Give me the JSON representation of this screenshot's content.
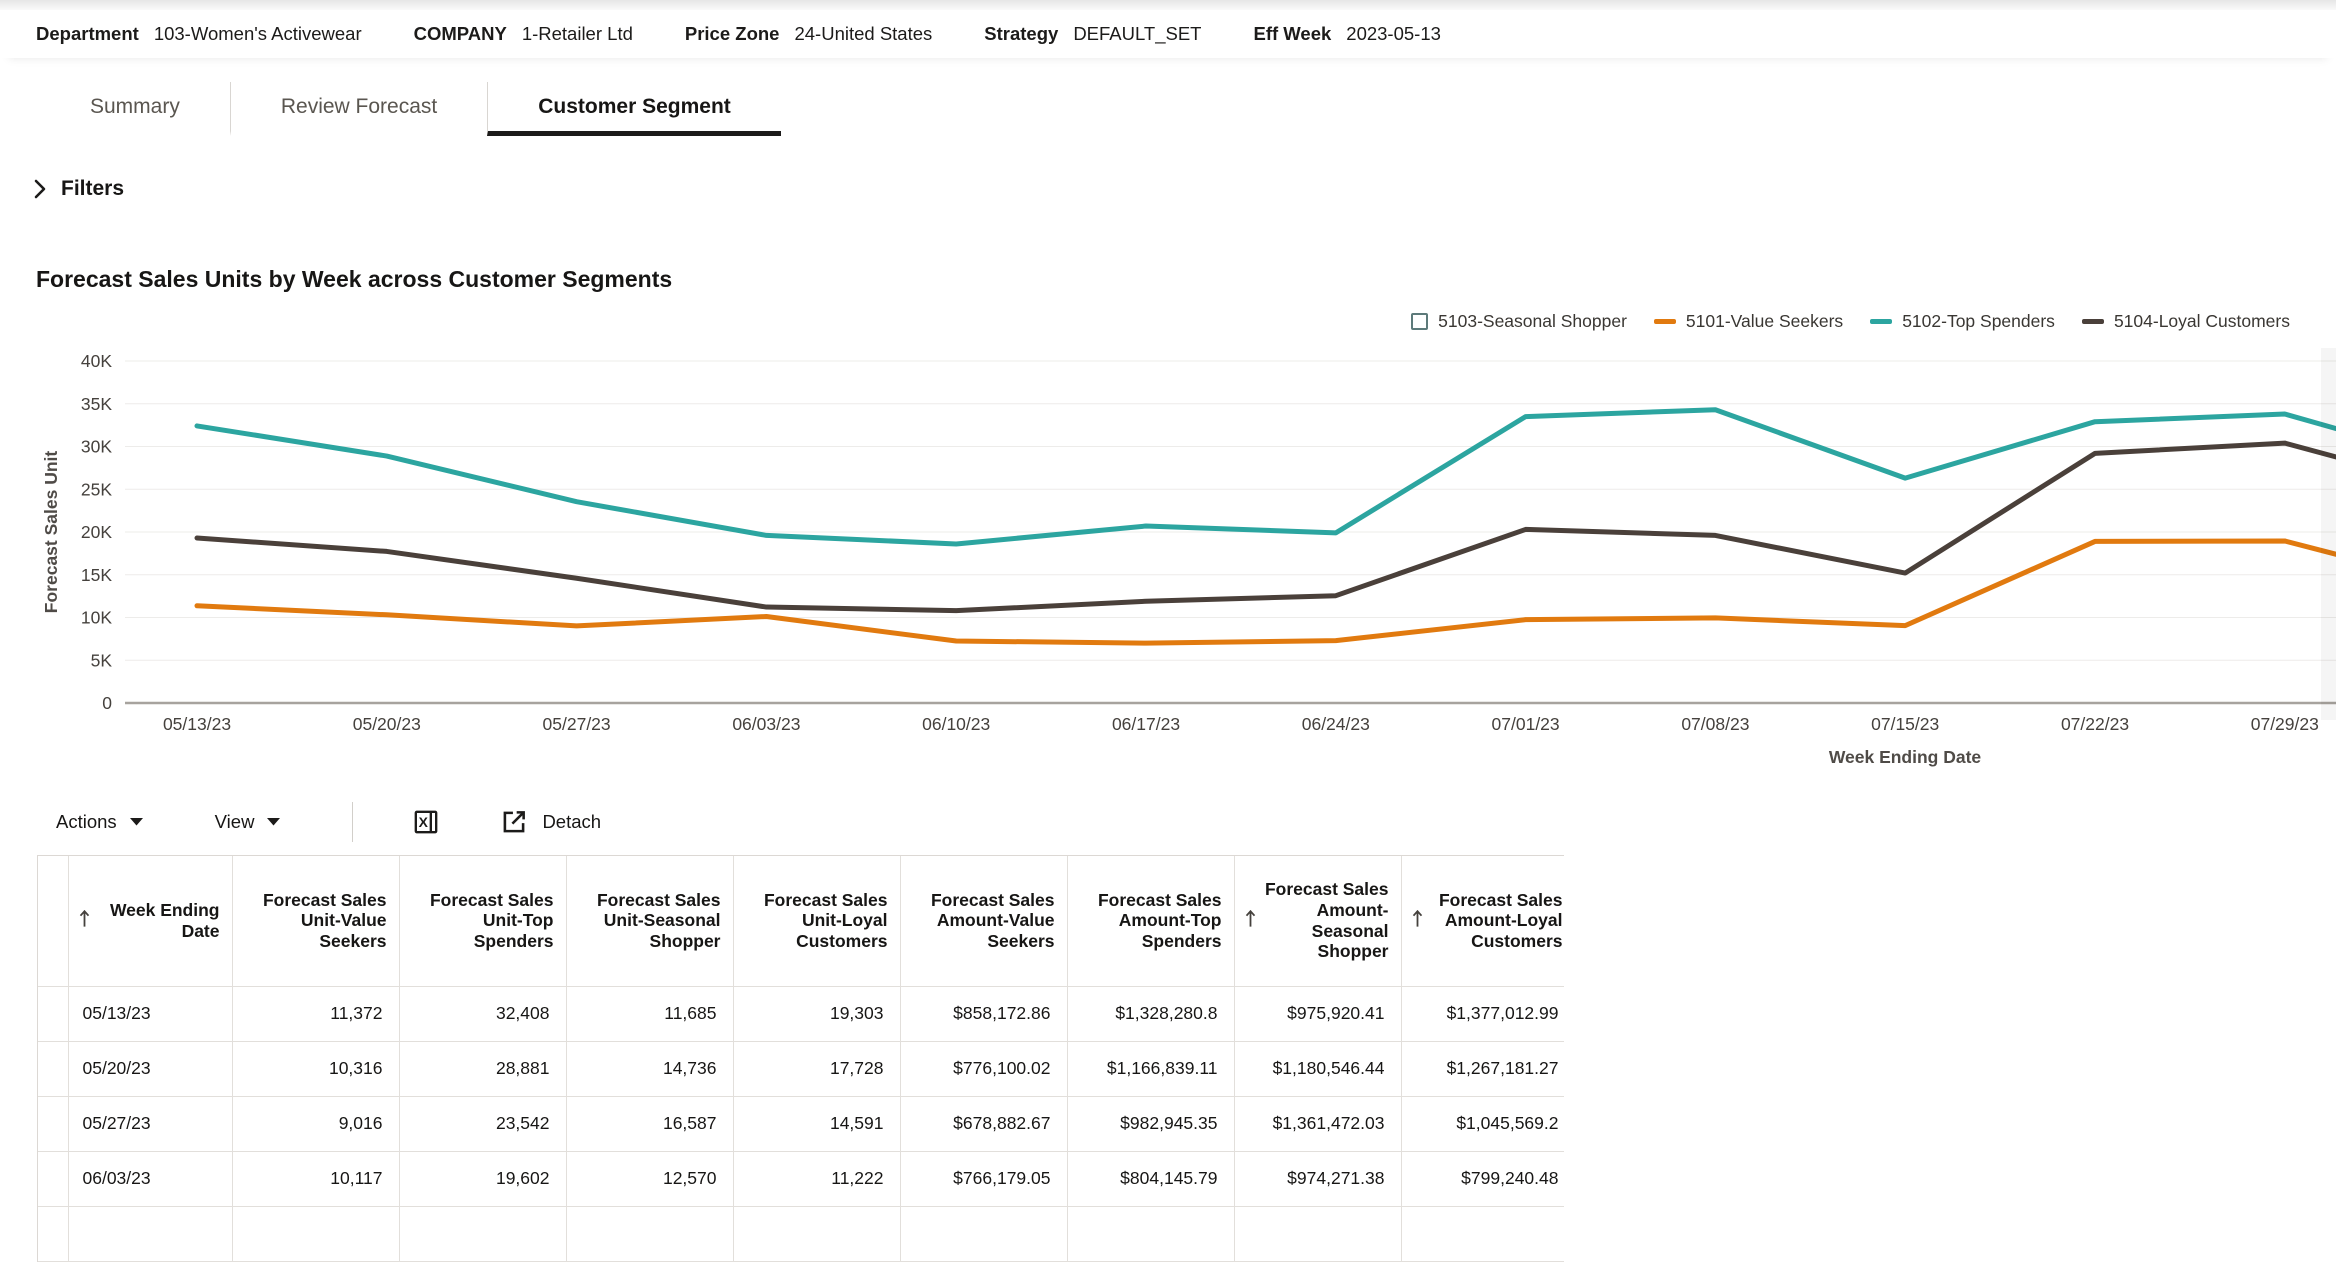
{
  "context_bar": {
    "fields": [
      {
        "label": "Department",
        "value": "103-Women's Activewear"
      },
      {
        "label": "COMPANY",
        "value": "1-Retailer Ltd"
      },
      {
        "label": "Price Zone",
        "value": "24-United States"
      },
      {
        "label": "Strategy",
        "value": "DEFAULT_SET"
      },
      {
        "label": "Eff Week",
        "value": "2023-05-13"
      }
    ]
  },
  "tabs": [
    {
      "label": "Summary",
      "active": false
    },
    {
      "label": "Review Forecast",
      "active": false
    },
    {
      "label": "Customer Segment",
      "active": true
    }
  ],
  "filters": {
    "label": "Filters",
    "expanded": false
  },
  "chart": {
    "title": "Forecast Sales Units by Week across Customer Segments"
  },
  "chart_data": {
    "type": "line",
    "title": "Forecast Sales Units by Week across Customer Segments",
    "xlabel": "Week Ending Date",
    "ylabel": "Forecast Sales Unit",
    "ylim": [
      0,
      40000
    ],
    "grid": true,
    "legend_position": "top-right",
    "y_tick_labels": [
      "40K",
      "35K",
      "30K",
      "25K",
      "20K",
      "15K",
      "10K",
      "5K",
      "0"
    ],
    "y_tick_values": [
      40000,
      35000,
      30000,
      25000,
      20000,
      15000,
      10000,
      5000,
      0
    ],
    "x": [
      "05/13/23",
      "05/20/23",
      "05/27/23",
      "06/03/23",
      "06/10/23",
      "06/17/23",
      "06/24/23",
      "07/01/23",
      "07/08/23",
      "07/15/23",
      "07/22/23",
      "07/29/23"
    ],
    "note": "Series extend one partially-visible point past 07/29/23 at the clipped right edge; 5103-Seasonal Shopper is toggled off (empty checkbox in legend). Values after 06/03/23 are estimated from the plot.",
    "series": [
      {
        "name": "5103-Seasonal Shopper",
        "color": "#5d7a7a",
        "visible": false,
        "swatch": "checkbox",
        "values": []
      },
      {
        "name": "5101-Value Seekers",
        "color": "#e17a0f",
        "visible": true,
        "swatch": "dash",
        "values": [
          11372,
          10316,
          9016,
          10117,
          7250,
          7000,
          7300,
          9750,
          9950,
          9050,
          18900,
          18950,
          13200
        ]
      },
      {
        "name": "5102-Top Spenders",
        "color": "#2ca5a0",
        "visible": true,
        "swatch": "dash",
        "values": [
          32408,
          28881,
          23542,
          19602,
          18600,
          20700,
          19900,
          33500,
          34300,
          26300,
          32900,
          33800,
          27500
        ]
      },
      {
        "name": "5104-Loyal Customers",
        "color": "#4a403a",
        "visible": true,
        "swatch": "dash",
        "values": [
          19303,
          17728,
          14591,
          11222,
          10800,
          11900,
          12550,
          20300,
          19600,
          15200,
          29200,
          30400,
          24400
        ]
      }
    ]
  },
  "toolbar": {
    "actions_label": "Actions",
    "view_label": "View",
    "detach_label": "Detach"
  },
  "table": {
    "columns": [
      {
        "label": "",
        "sort": false
      },
      {
        "label": "Week Ending Date",
        "sort": true
      },
      {
        "label": "Forecast Sales Unit-Value Seekers",
        "sort": false
      },
      {
        "label": "Forecast Sales Unit-Top Spenders",
        "sort": false
      },
      {
        "label": "Forecast Sales Unit-Seasonal Shopper",
        "sort": false
      },
      {
        "label": "Forecast Sales Unit-Loyal Customers",
        "sort": false
      },
      {
        "label": "Forecast Sales Amount-Value Seekers",
        "sort": false
      },
      {
        "label": "Forecast Sales Amount-Top Spenders",
        "sort": false
      },
      {
        "label": "Forecast Sales Amount-Seasonal Shopper",
        "sort": true
      },
      {
        "label": "Forecast Sales Amount-Loyal Customers",
        "sort": true
      }
    ],
    "rows": [
      {
        "date": "05/13/23",
        "cells": [
          "11,372",
          "32,408",
          "11,685",
          "19,303",
          "$858,172.86",
          "$1,328,280.8",
          "$975,920.41",
          "$1,377,012.99"
        ]
      },
      {
        "date": "05/20/23",
        "cells": [
          "10,316",
          "28,881",
          "14,736",
          "17,728",
          "$776,100.02",
          "$1,166,839.11",
          "$1,180,546.44",
          "$1,267,181.27"
        ]
      },
      {
        "date": "05/27/23",
        "cells": [
          "9,016",
          "23,542",
          "16,587",
          "14,591",
          "$678,882.67",
          "$982,945.35",
          "$1,361,472.03",
          "$1,045,569.2"
        ]
      },
      {
        "date": "06/03/23",
        "cells": [
          "10,117",
          "19,602",
          "12,570",
          "11,222",
          "$766,179.05",
          "$804,145.79",
          "$974,271.38",
          "$799,240.48"
        ]
      }
    ]
  }
}
